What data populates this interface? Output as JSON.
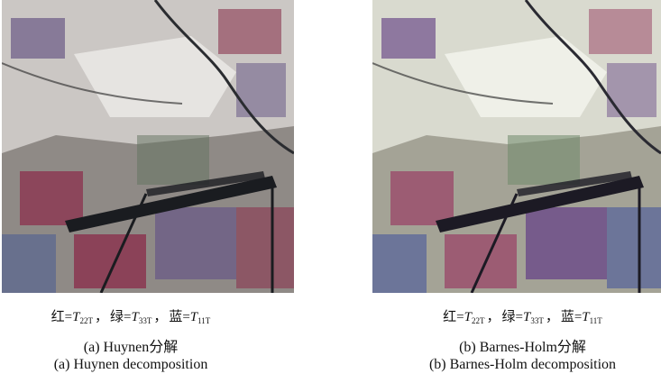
{
  "panels": [
    {
      "id": "a",
      "channels": {
        "red_label": "红=",
        "red_symbol": "T",
        "red_sub": "22T",
        "green_label": "绿=",
        "green_symbol": "T",
        "green_sub": "33T",
        "blue_label": "蓝=",
        "blue_symbol": "T",
        "blue_sub": "11T",
        "separator": "，"
      },
      "caption_zh": "(a) Huynen分解",
      "caption_en": "(a) Huynen decomposition",
      "palette": {
        "base": "#8f8a86",
        "bright": "#e8e6e4",
        "red_field": "#8b3550",
        "purple_field": "#6a5a86",
        "blue_field": "#4f5f92",
        "green_field": "#61725e",
        "dark": "#1a1c20"
      }
    },
    {
      "id": "b",
      "channels": {
        "red_label": "红=",
        "red_symbol": "T",
        "red_sub": "22T",
        "green_label": "绿=",
        "green_symbol": "T",
        "green_sub": "33T",
        "blue_label": "蓝=",
        "blue_symbol": "T",
        "blue_sub": "11T",
        "separator": "，"
      },
      "caption_zh": "(b) Barnes-Holm分解",
      "caption_en": "(b) Barnes-Holm decomposition",
      "palette": {
        "base": "#a4a396",
        "bright": "#eef0e6",
        "red_field": "#9a4a6a",
        "purple_field": "#6e4f8a",
        "blue_field": "#54619a",
        "green_field": "#6f8a6c",
        "dark": "#1c1a24"
      }
    }
  ]
}
